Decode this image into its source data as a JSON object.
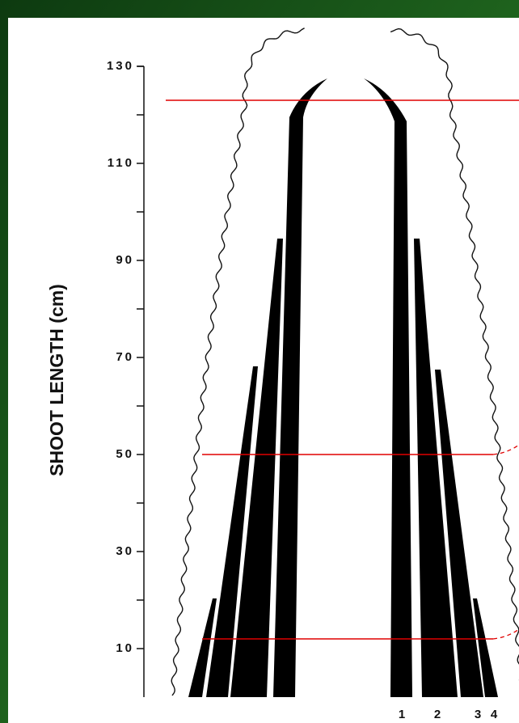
{
  "chart_data": {
    "type": "diagram",
    "y_axis_label": "SHOOT LENGTH (cm)",
    "ylim": [
      0,
      130
    ],
    "yticks": [
      10,
      30,
      50,
      70,
      90,
      110,
      130
    ],
    "reference_lines": [
      12,
      50,
      123
    ],
    "leaf_labels": [
      "1",
      "2",
      "3",
      "4"
    ],
    "line_color": "#e00000"
  }
}
